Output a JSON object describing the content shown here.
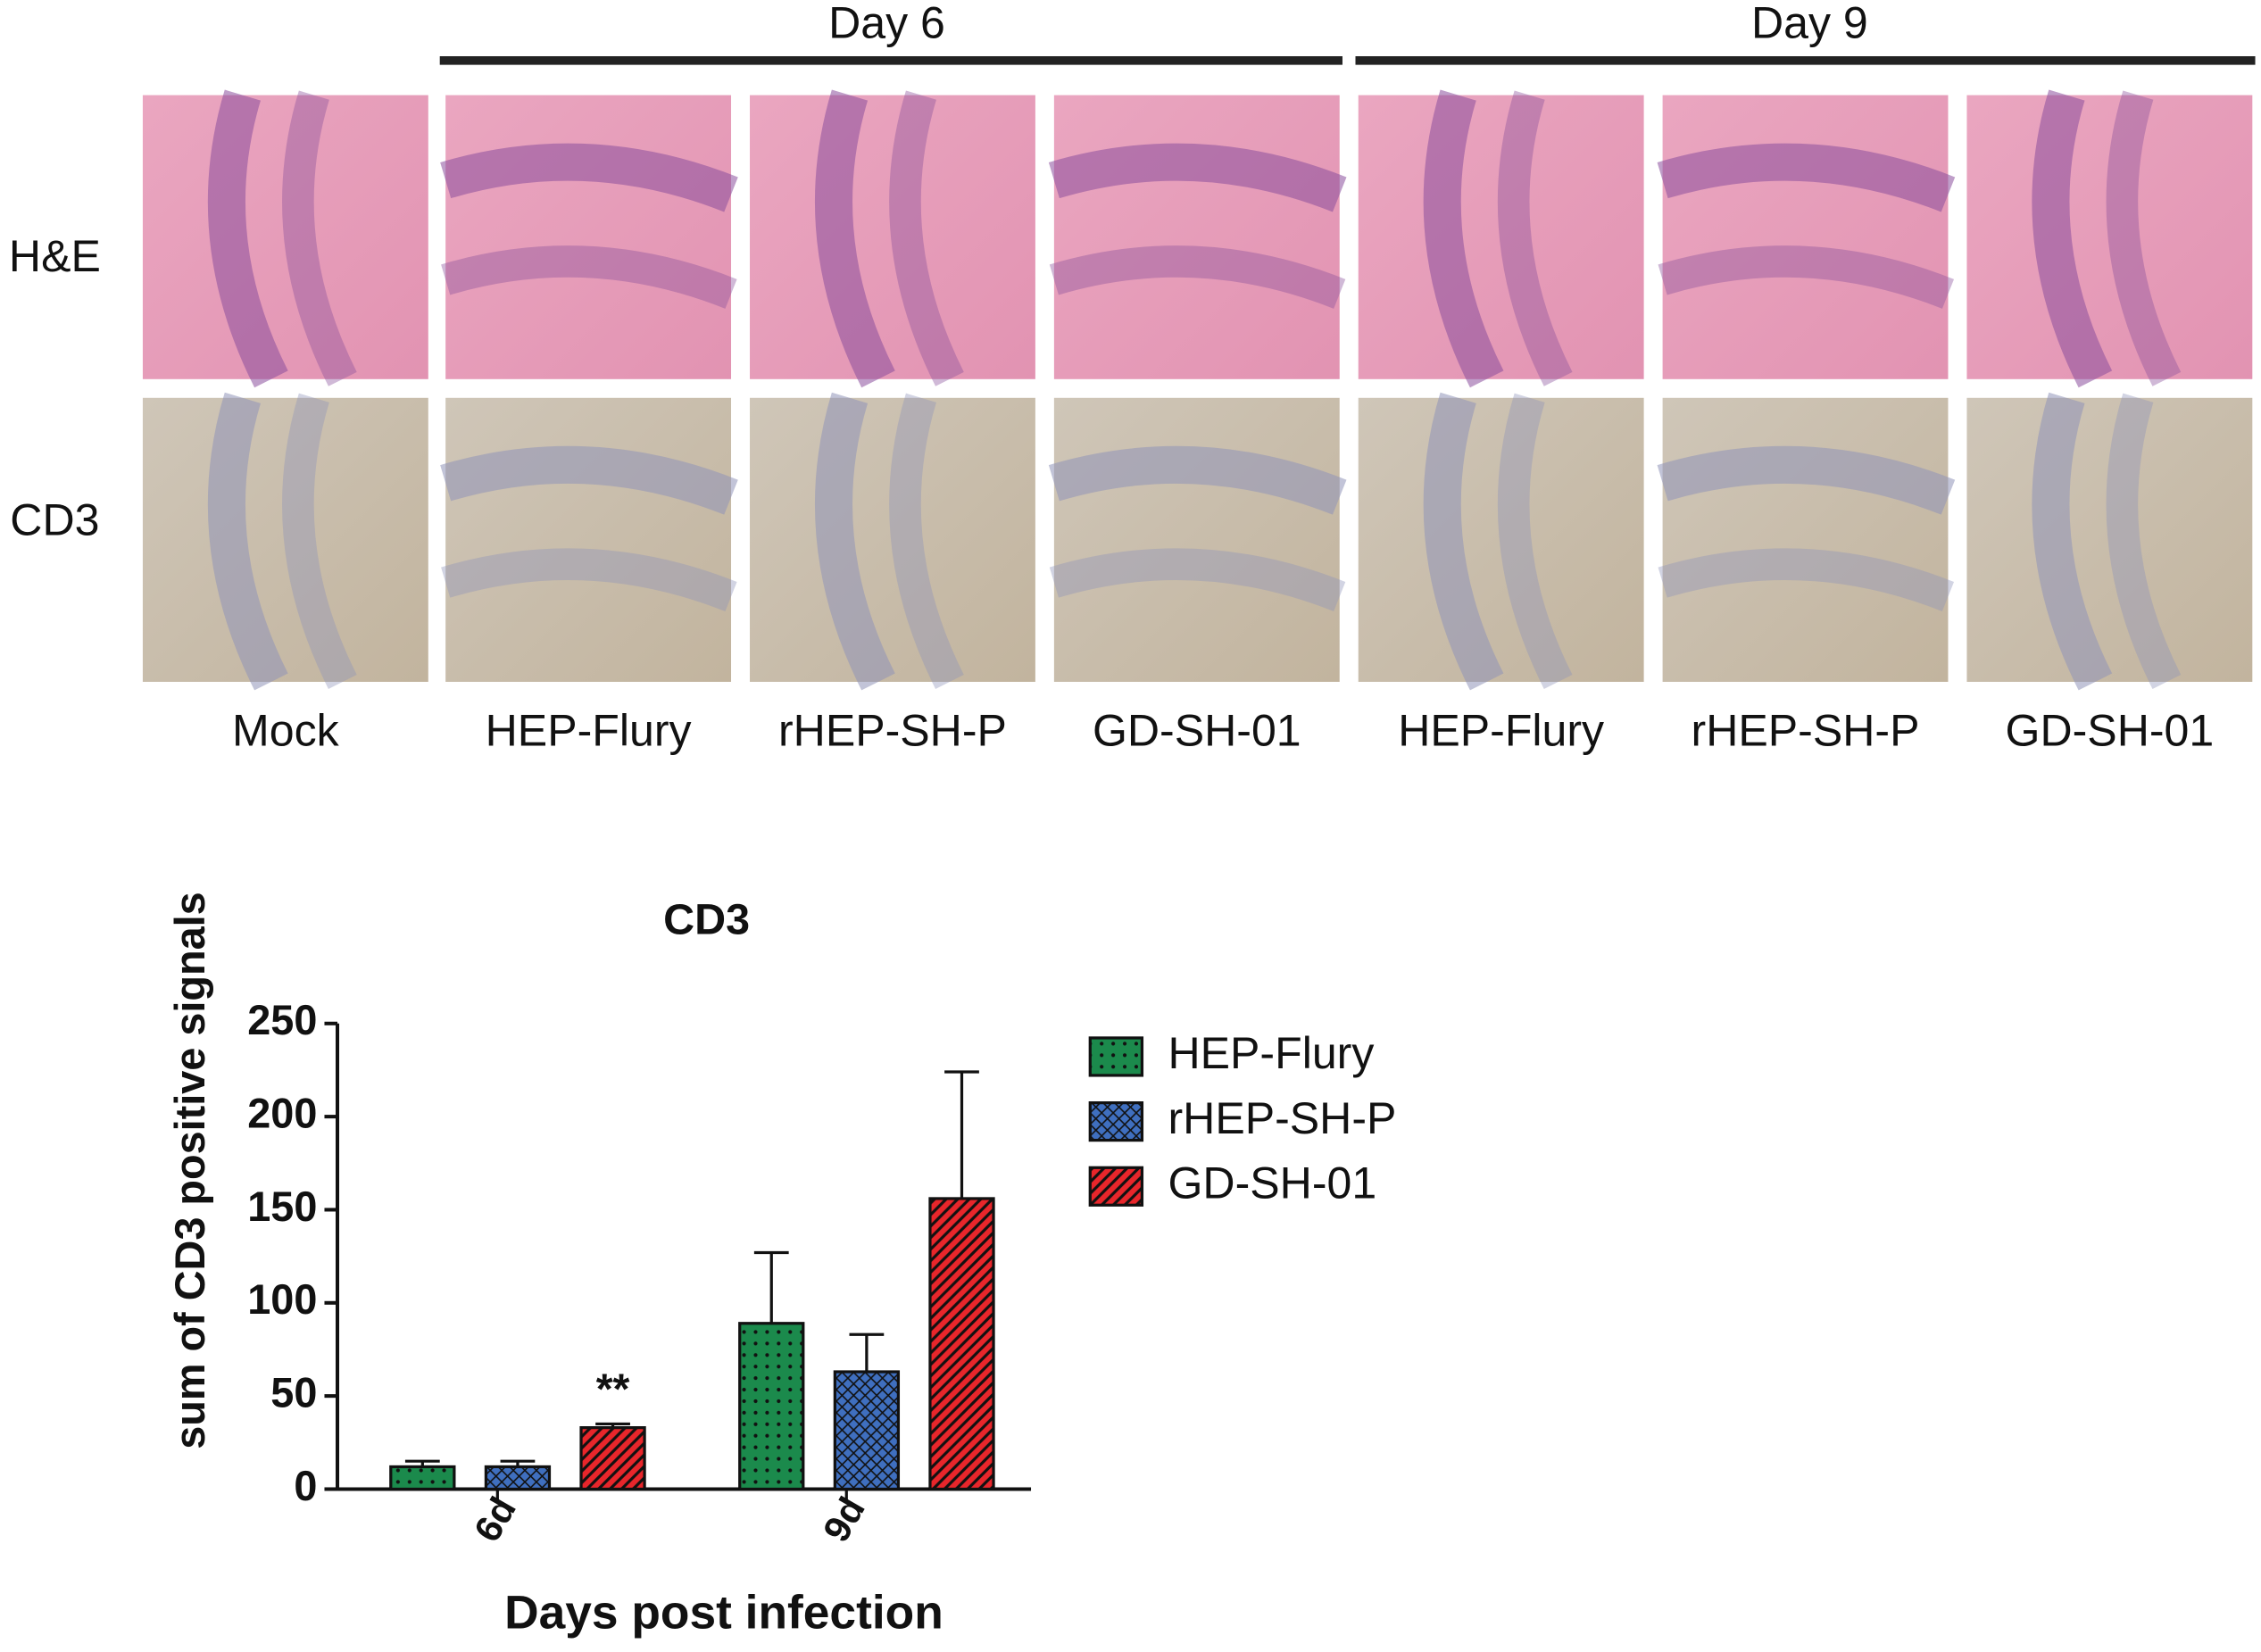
{
  "image_panel": {
    "group_labels": [
      "Day 6",
      "Day 9"
    ],
    "row_labels": [
      "H&E",
      "CD3"
    ],
    "column_labels": [
      "Mock",
      "HEP-Flury",
      "rHEP-SH-P",
      "GD-SH-01",
      "HEP-Flury",
      "rHEP-SH-P",
      "GD-SH-01"
    ]
  },
  "chart_data": {
    "type": "bar",
    "title": "CD3",
    "x_label": "Days post infection",
    "y_label": "sum of CD3 positive signals",
    "categories": [
      "6d",
      "9d"
    ],
    "series": [
      {
        "name": "HEP-Flury",
        "color": "#1b8a4c",
        "hatch": "dots",
        "values": [
          12,
          89
        ],
        "errors": [
          3,
          38
        ]
      },
      {
        "name": "rHEP-SH-P",
        "color": "#3f6fbf",
        "hatch": "crosshatch",
        "values": [
          12,
          63
        ],
        "errors": [
          3,
          20
        ]
      },
      {
        "name": "GD-SH-01",
        "color": "#e8262b",
        "hatch": "stripes",
        "values": [
          33,
          156
        ],
        "errors": [
          2,
          68
        ]
      }
    ],
    "annotations": [
      {
        "text": "**",
        "series": "GD-SH-01",
        "category": "6d"
      }
    ],
    "ylim": [
      0,
      250
    ],
    "yticks": [
      0,
      50,
      100,
      150,
      200,
      250
    ],
    "grid": false,
    "legend": "right"
  }
}
